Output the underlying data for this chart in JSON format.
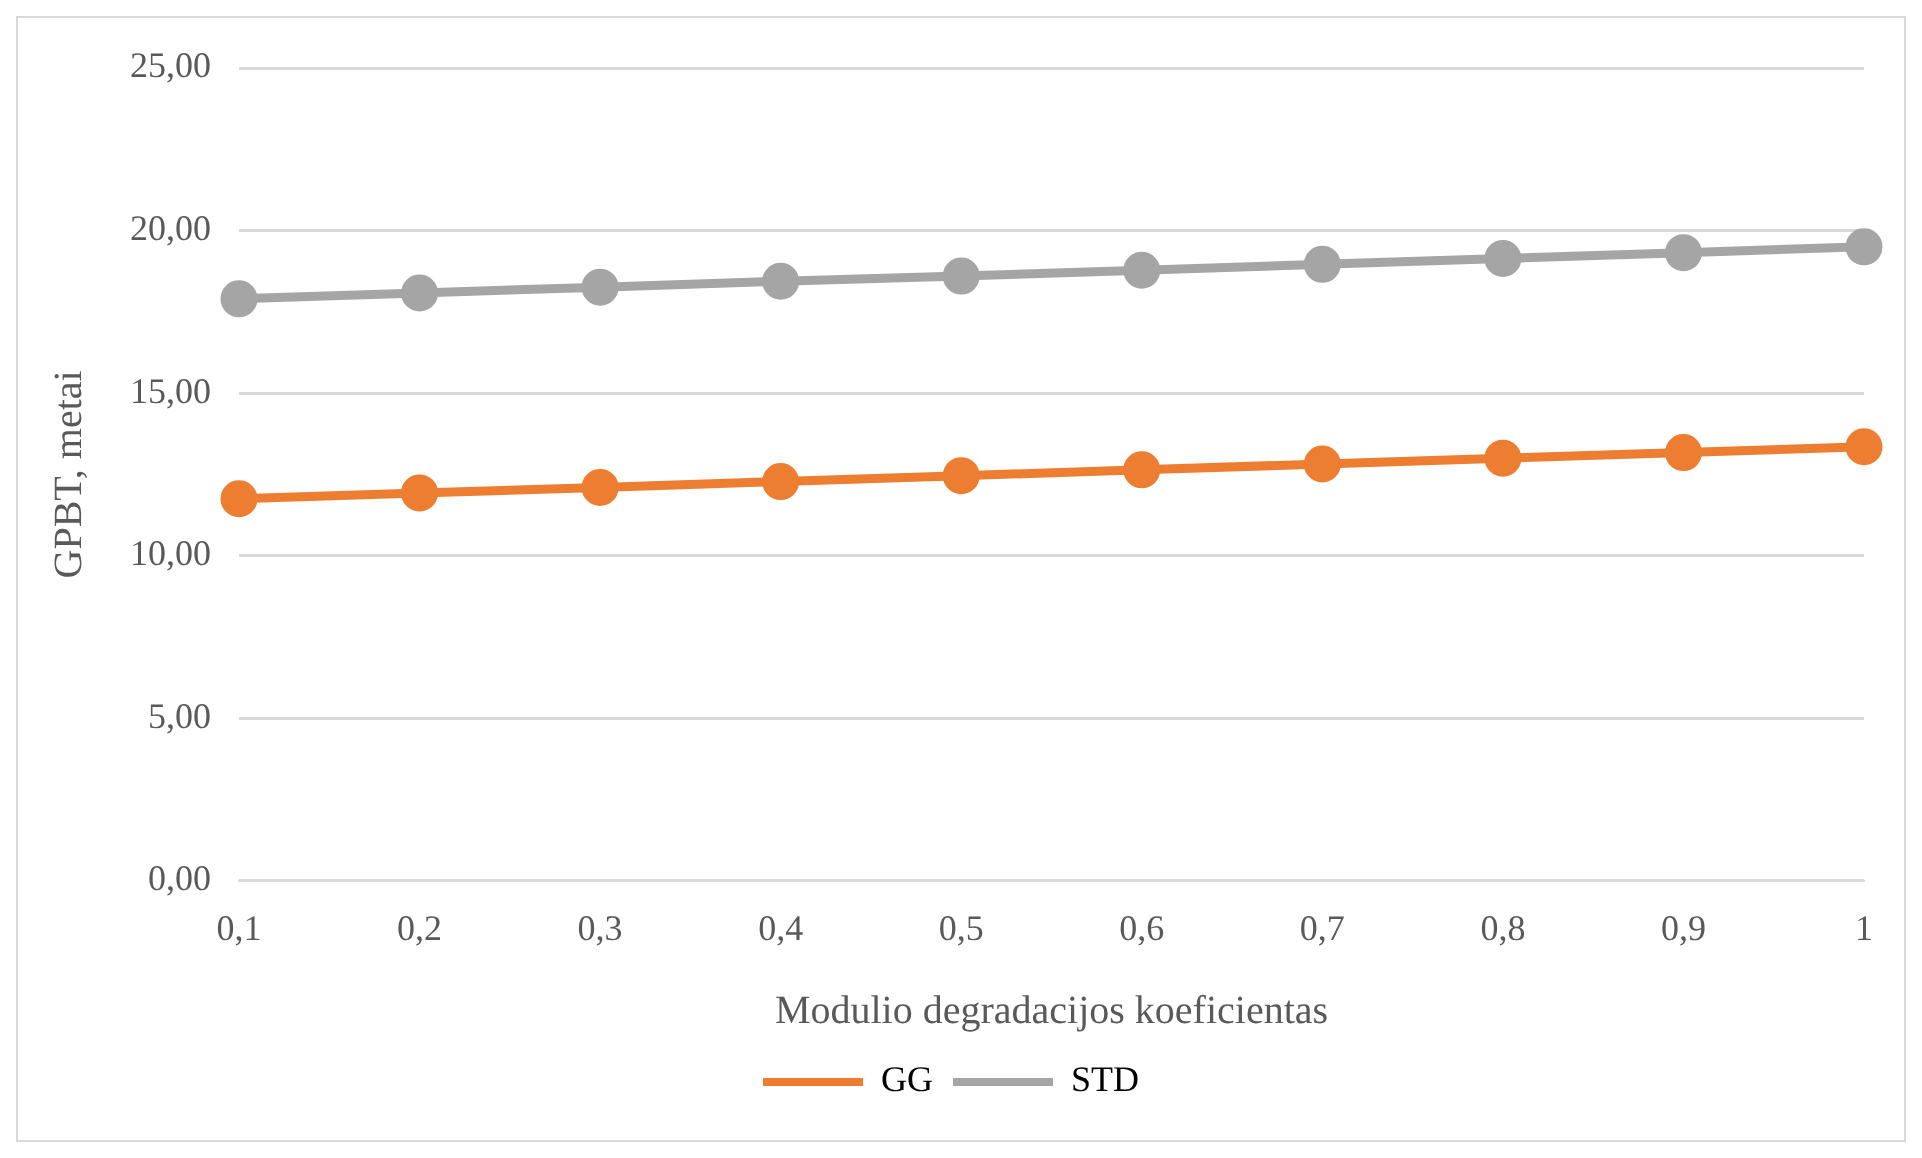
{
  "chart_data": {
    "type": "line",
    "xlabel": "Modulio degradacijos koeficientas",
    "ylabel": "GPBT, metai",
    "categories": [
      "0,1",
      "0,2",
      "0,3",
      "0,4",
      "0,5",
      "0,6",
      "0,7",
      "0,8",
      "0,9",
      "1"
    ],
    "series": [
      {
        "name": "GG",
        "color": "#ed7d31",
        "values": [
          11.75,
          11.93,
          12.1,
          12.28,
          12.46,
          12.64,
          12.82,
          13.0,
          13.17,
          13.35
        ]
      },
      {
        "name": "STD",
        "color": "#a5a5a5",
        "values": [
          17.9,
          18.08,
          18.26,
          18.44,
          18.6,
          18.78,
          18.96,
          19.14,
          19.32,
          19.5
        ]
      }
    ],
    "ylim": [
      0,
      25
    ],
    "yticks": [
      {
        "value": 0,
        "label": "0,00"
      },
      {
        "value": 5,
        "label": "5,00"
      },
      {
        "value": 10,
        "label": "10,00"
      },
      {
        "value": 15,
        "label": "15,00"
      },
      {
        "value": 20,
        "label": "20,00"
      },
      {
        "value": 25,
        "label": "25,00"
      }
    ],
    "grid": "y",
    "legend": "bottom",
    "marker": "circle",
    "line_style": "solid"
  }
}
